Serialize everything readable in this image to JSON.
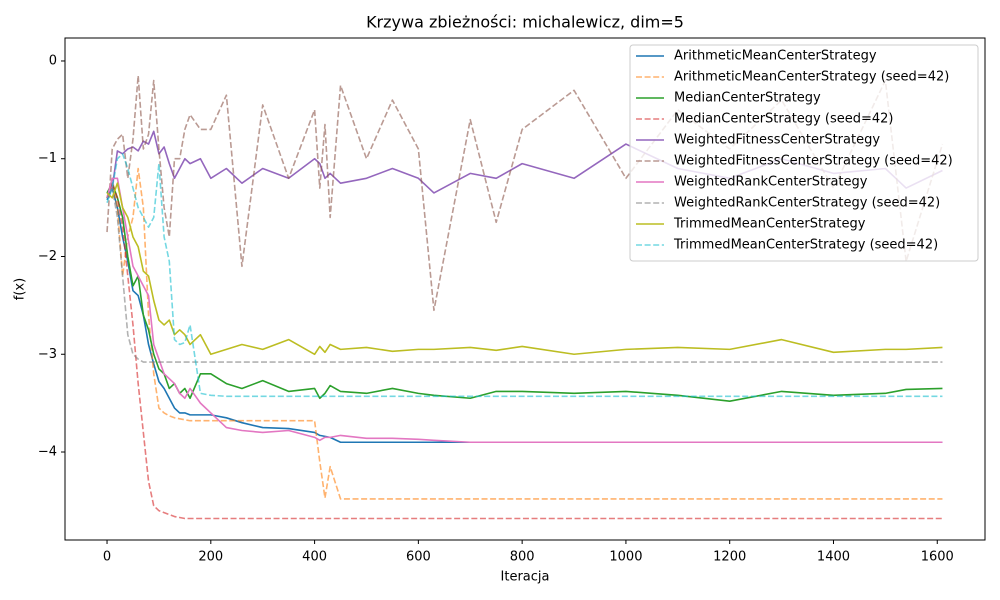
{
  "chart_data": {
    "type": "line",
    "title": "Krzywa zbieżności: michalewicz, dim=5",
    "xlabel": "Iteracja",
    "ylabel": "f(x)",
    "x": [
      0,
      10,
      20,
      30,
      40,
      50,
      60,
      70,
      80,
      90,
      100,
      110,
      120,
      130,
      140,
      150,
      160,
      180,
      200,
      230,
      260,
      300,
      350,
      400,
      410,
      420,
      430,
      450,
      500,
      550,
      600,
      630,
      700,
      750,
      800,
      900,
      1000,
      1100,
      1200,
      1300,
      1400,
      1500,
      1540,
      1610
    ],
    "xlim": [
      -81,
      1692
    ],
    "ylim": [
      -4.9,
      0.235
    ],
    "xticks": [
      0,
      200,
      400,
      600,
      800,
      1000,
      1200,
      1400,
      1600
    ],
    "yticks": [
      0,
      {
        "value": -1,
        "label": "−1"
      },
      {
        "value": -2,
        "label": "−2"
      },
      {
        "value": -3,
        "label": "−3"
      },
      {
        "value": -4,
        "label": "−4"
      }
    ],
    "legend": "upper right",
    "series": [
      {
        "name": "ArithmeticMeanCenterStrategy",
        "color": "#1f77b4",
        "dashed": false,
        "values": [
          -1.42,
          -1.3,
          -1.5,
          -1.8,
          -2.05,
          -2.35,
          -2.4,
          -2.6,
          -2.9,
          -3.1,
          -3.28,
          -3.35,
          -3.45,
          -3.55,
          -3.6,
          -3.6,
          -3.62,
          -3.62,
          -3.62,
          -3.65,
          -3.7,
          -3.75,
          -3.76,
          -3.8,
          -3.83,
          -3.84,
          -3.85,
          -3.9,
          -3.9,
          -3.9,
          -3.9,
          -3.9,
          -3.9,
          -3.9,
          -3.9,
          -3.9,
          -3.9,
          -3.9,
          -3.9,
          -3.9,
          -3.9,
          -3.9,
          -3.9,
          -3.9
        ]
      },
      {
        "name": "ArithmeticMeanCenterStrategy (seed=42)",
        "color": "#ff7f0e",
        "dashed": true,
        "values": [
          -1.4,
          -1.2,
          -1.5,
          -2.2,
          -1.8,
          -1.6,
          -1.1,
          -1.5,
          -2.6,
          -3.2,
          -3.55,
          -3.6,
          -3.63,
          -3.65,
          -3.66,
          -3.67,
          -3.68,
          -3.68,
          -3.68,
          -3.68,
          -3.68,
          -3.68,
          -3.68,
          -3.68,
          -4.1,
          -4.47,
          -4.15,
          -4.48,
          -4.48,
          -4.48,
          -4.48,
          -4.48,
          -4.48,
          -4.48,
          -4.48,
          -4.48,
          -4.48,
          -4.48,
          -4.48,
          -4.48,
          -4.48,
          -4.48,
          -4.48,
          -4.48
        ]
      },
      {
        "name": "MedianCenterStrategy",
        "color": "#2ca02c",
        "dashed": false,
        "values": [
          -1.35,
          -1.25,
          -1.4,
          -1.6,
          -2.0,
          -2.3,
          -2.2,
          -2.6,
          -2.75,
          -3.0,
          -3.15,
          -3.2,
          -3.35,
          -3.3,
          -3.4,
          -3.35,
          -3.45,
          -3.2,
          -3.2,
          -3.3,
          -3.35,
          -3.27,
          -3.38,
          -3.35,
          -3.45,
          -3.4,
          -3.32,
          -3.38,
          -3.4,
          -3.35,
          -3.4,
          -3.42,
          -3.45,
          -3.38,
          -3.38,
          -3.4,
          -3.38,
          -3.42,
          -3.48,
          -3.38,
          -3.42,
          -3.4,
          -3.36,
          -3.35
        ]
      },
      {
        "name": "MedianCenterStrategy (seed=42)",
        "color": "#d62728",
        "dashed": true,
        "values": [
          -1.4,
          -1.25,
          -1.4,
          -1.7,
          -2.2,
          -2.7,
          -3.3,
          -3.8,
          -4.3,
          -4.55,
          -4.6,
          -4.62,
          -4.64,
          -4.66,
          -4.67,
          -4.68,
          -4.68,
          -4.68,
          -4.68,
          -4.68,
          -4.68,
          -4.68,
          -4.68,
          -4.68,
          -4.68,
          -4.68,
          -4.68,
          -4.68,
          -4.68,
          -4.68,
          -4.68,
          -4.68,
          -4.68,
          -4.68,
          -4.68,
          -4.68,
          -4.68,
          -4.68,
          -4.68,
          -4.68,
          -4.68,
          -4.68,
          -4.68,
          -4.68
        ]
      },
      {
        "name": "WeightedFitnessCenterStrategy",
        "color": "#9467bd",
        "dashed": false,
        "values": [
          -1.4,
          -1.3,
          -0.92,
          -0.95,
          -0.9,
          -0.88,
          -0.92,
          -0.82,
          -0.85,
          -0.72,
          -0.95,
          -0.88,
          -1.05,
          -1.2,
          -1.1,
          -1.0,
          -1.05,
          -1.0,
          -1.2,
          -1.1,
          -1.25,
          -1.1,
          -1.2,
          -1.0,
          -1.05,
          -1.2,
          -1.15,
          -1.25,
          -1.2,
          -1.1,
          -1.2,
          -1.35,
          -1.15,
          -1.2,
          -1.05,
          -1.2,
          -0.85,
          -1.1,
          -1.2,
          -1.0,
          -1.15,
          -1.1,
          -1.3,
          -1.12
        ]
      },
      {
        "name": "WeightedFitnessCenterStrategy (seed=42)",
        "color": "#8c564b",
        "dashed": true,
        "values": [
          -1.75,
          -0.9,
          -0.8,
          -0.75,
          -1.2,
          -0.8,
          -0.15,
          -0.9,
          -0.75,
          -0.2,
          -0.9,
          -1.5,
          -1.8,
          -1.0,
          -1.0,
          -0.7,
          -0.55,
          -0.7,
          -0.7,
          -0.35,
          -2.1,
          -0.45,
          -1.2,
          -0.5,
          -1.3,
          -0.65,
          -1.6,
          -0.25,
          -1.0,
          -0.4,
          -0.9,
          -2.55,
          -0.6,
          -1.65,
          -0.7,
          -0.3,
          -1.2,
          -0.5,
          -0.9,
          -0.4,
          -1.3,
          -0.2,
          -2.05,
          -0.85
        ]
      },
      {
        "name": "WeightedRankCenterStrategy",
        "color": "#e377c2",
        "dashed": false,
        "values": [
          -1.4,
          -1.2,
          -1.2,
          -1.5,
          -1.8,
          -2.1,
          -2.2,
          -2.3,
          -2.4,
          -2.9,
          -3.05,
          -3.2,
          -3.25,
          -3.3,
          -3.4,
          -3.45,
          -3.35,
          -3.5,
          -3.6,
          -3.75,
          -3.78,
          -3.8,
          -3.78,
          -3.85,
          -3.88,
          -3.85,
          -3.85,
          -3.83,
          -3.86,
          -3.86,
          -3.87,
          -3.88,
          -3.9,
          -3.9,
          -3.9,
          -3.9,
          -3.9,
          -3.9,
          -3.9,
          -3.9,
          -3.9,
          -3.9,
          -3.9,
          -3.9
        ]
      },
      {
        "name": "WeightedRankCenterStrategy (seed=42)",
        "color": "#7f7f7f",
        "dashed": true,
        "values": [
          -1.4,
          -1.3,
          -1.6,
          -2.2,
          -2.8,
          -3.0,
          -3.05,
          -3.08,
          -3.08,
          -3.08,
          -3.08,
          -3.08,
          -3.08,
          -3.08,
          -3.08,
          -3.08,
          -3.08,
          -3.08,
          -3.08,
          -3.08,
          -3.08,
          -3.08,
          -3.08,
          -3.08,
          -3.08,
          -3.08,
          -3.08,
          -3.08,
          -3.08,
          -3.08,
          -3.08,
          -3.08,
          -3.08,
          -3.08,
          -3.08,
          -3.08,
          -3.08,
          -3.08,
          -3.08,
          -3.08,
          -3.08,
          -3.08,
          -3.08,
          -3.08
        ]
      },
      {
        "name": "TrimmedMeanCenterStrategy",
        "color": "#bcbd22",
        "dashed": false,
        "values": [
          -1.35,
          -1.4,
          -1.25,
          -1.5,
          -1.6,
          -1.8,
          -1.9,
          -2.15,
          -2.2,
          -2.45,
          -2.65,
          -2.7,
          -2.65,
          -2.8,
          -2.75,
          -2.8,
          -2.9,
          -2.8,
          -3.0,
          -2.95,
          -2.9,
          -2.95,
          -2.85,
          -3.0,
          -2.92,
          -2.98,
          -2.9,
          -2.95,
          -2.93,
          -2.97,
          -2.95,
          -2.95,
          -2.93,
          -2.96,
          -2.92,
          -3.0,
          -2.95,
          -2.93,
          -2.95,
          -2.85,
          -2.98,
          -2.95,
          -2.95,
          -2.93
        ]
      },
      {
        "name": "TrimmedMeanCenterStrategy (seed=42)",
        "color": "#17becf",
        "dashed": true,
        "values": [
          -1.45,
          -1.3,
          -1.0,
          -0.95,
          -1.1,
          -1.3,
          -1.5,
          -1.6,
          -1.7,
          -1.6,
          -1.05,
          -1.8,
          -2.05,
          -2.85,
          -2.9,
          -2.88,
          -2.7,
          -3.4,
          -3.42,
          -3.43,
          -3.43,
          -3.43,
          -3.43,
          -3.43,
          -3.43,
          -3.43,
          -3.43,
          -3.43,
          -3.43,
          -3.43,
          -3.43,
          -3.43,
          -3.43,
          -3.43,
          -3.43,
          -3.43,
          -3.43,
          -3.43,
          -3.43,
          -3.43,
          -3.43,
          -3.43,
          -3.43,
          -3.43
        ]
      }
    ]
  }
}
